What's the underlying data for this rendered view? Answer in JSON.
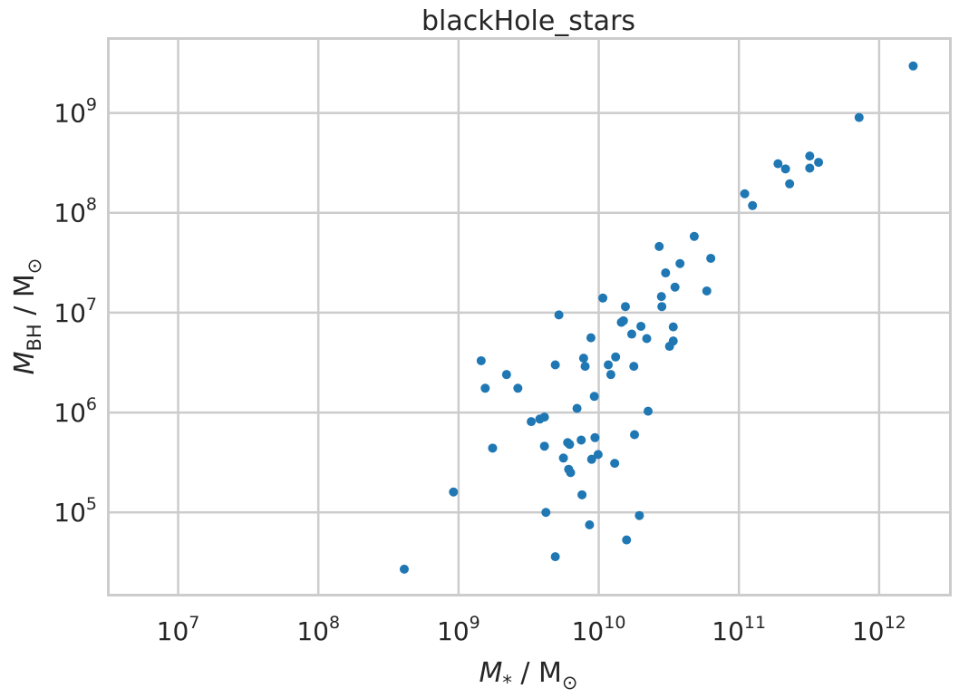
{
  "chart_data": {
    "type": "scatter",
    "title": "blackHole_stars",
    "xlabel": {
      "symbol": "M",
      "sub": "*",
      "rest": " / M",
      "unit_sub": "⊙"
    },
    "ylabel": {
      "symbol": "M",
      "sub": "BH",
      "rest": " / M",
      "unit_sub": "⊙"
    },
    "xscale": "log",
    "yscale": "log",
    "xlim": [
      3200000.0,
      3200000000000.0
    ],
    "ylim": [
      15000.0,
      5500000000.0
    ],
    "xticks": [
      {
        "base": "10",
        "exp": "7",
        "value": 10000000.0
      },
      {
        "base": "10",
        "exp": "8",
        "value": 100000000.0
      },
      {
        "base": "10",
        "exp": "9",
        "value": 1000000000.0
      },
      {
        "base": "10",
        "exp": "10",
        "value": 10000000000.0
      },
      {
        "base": "10",
        "exp": "11",
        "value": 100000000000.0
      },
      {
        "base": "10",
        "exp": "12",
        "value": 1000000000000.0
      }
    ],
    "yticks": [
      {
        "base": "10",
        "exp": "5",
        "value": 100000.0
      },
      {
        "base": "10",
        "exp": "6",
        "value": 1000000.0
      },
      {
        "base": "10",
        "exp": "7",
        "value": 10000000.0
      },
      {
        "base": "10",
        "exp": "8",
        "value": 100000000.0
      },
      {
        "base": "10",
        "exp": "9",
        "value": 1000000000.0
      }
    ],
    "grid": true,
    "color": "#1f77b4",
    "points": [
      [
        410000000.0,
        27000.0
      ],
      [
        920000000.0,
        160000.0
      ],
      [
        1450000000.0,
        3300000.0
      ],
      [
        1550000000.0,
        1750000.0
      ],
      [
        1750000000.0,
        440000.0
      ],
      [
        2200000000.0,
        2400000.0
      ],
      [
        2650000000.0,
        1750000.0
      ],
      [
        3300000000.0,
        810000.0
      ],
      [
        3800000000.0,
        860000.0
      ],
      [
        4100000000.0,
        900000.0
      ],
      [
        4100000000.0,
        460000.0
      ],
      [
        4200000000.0,
        100000.0
      ],
      [
        4900000000.0,
        3000000.0
      ],
      [
        4900000000.0,
        36000.0
      ],
      [
        5200000000.0,
        9500000.0
      ],
      [
        5600000000.0,
        350000.0
      ],
      [
        6000000000.0,
        500000.0
      ],
      [
        6100000000.0,
        270000.0
      ],
      [
        6200000000.0,
        480000.0
      ],
      [
        6300000000.0,
        250000.0
      ],
      [
        7000000000.0,
        1100000.0
      ],
      [
        7500000000.0,
        530000.0
      ],
      [
        7600000000.0,
        150000.0
      ],
      [
        7800000000.0,
        3500000.0
      ],
      [
        8000000000.0,
        2900000.0
      ],
      [
        8600000000.0,
        75000.0
      ],
      [
        8800000000.0,
        5600000.0
      ],
      [
        8900000000.0,
        340000.0
      ],
      [
        9300000000.0,
        1450000.0
      ],
      [
        9400000000.0,
        560000.0
      ],
      [
        9900000000.0,
        380000.0
      ],
      [
        10700000000.0,
        14000000.0
      ],
      [
        11700000000.0,
        3000000.0
      ],
      [
        12200000000.0,
        2400000.0
      ],
      [
        13000000000.0,
        310000.0
      ],
      [
        13200000000.0,
        3600000.0
      ],
      [
        14500000000.0,
        8000000.0
      ],
      [
        15000000000.0,
        8300000.0
      ],
      [
        15500000000.0,
        11500000.0
      ],
      [
        15800000000.0,
        53000.0
      ],
      [
        17200000000.0,
        6100000.0
      ],
      [
        17800000000.0,
        2900000.0
      ],
      [
        18000000000.0,
        600000.0
      ],
      [
        19500000000.0,
        93000.0
      ],
      [
        20000000000.0,
        7300000.0
      ],
      [
        22000000000.0,
        5500000.0
      ],
      [
        22500000000.0,
        1030000.0
      ],
      [
        27000000000.0,
        46000000.0
      ],
      [
        28000000000.0,
        14500000.0
      ],
      [
        28200000000.0,
        11500000.0
      ],
      [
        30000000000.0,
        25000000.0
      ],
      [
        32000000000.0,
        4600000.0
      ],
      [
        34000000000.0,
        5200000.0
      ],
      [
        34000000000.0,
        7200000.0
      ],
      [
        35000000000.0,
        18000000.0
      ],
      [
        38000000000.0,
        31000000.0
      ],
      [
        48000000000.0,
        58000000.0
      ],
      [
        59000000000.0,
        16500000.0
      ],
      [
        63000000000.0,
        35000000.0
      ],
      [
        110000000000.0,
        155000000.0
      ],
      [
        125000000000.0,
        118000000.0
      ],
      [
        190000000000.0,
        310000000.0
      ],
      [
        215000000000.0,
        275000000.0
      ],
      [
        230000000000.0,
        195000000.0
      ],
      [
        320000000000.0,
        370000000.0
      ],
      [
        320000000000.0,
        280000000.0
      ],
      [
        370000000000.0,
        320000000.0
      ],
      [
        720000000000.0,
        900000000.0
      ],
      [
        1750000000000.0,
        2950000000.0
      ]
    ]
  }
}
